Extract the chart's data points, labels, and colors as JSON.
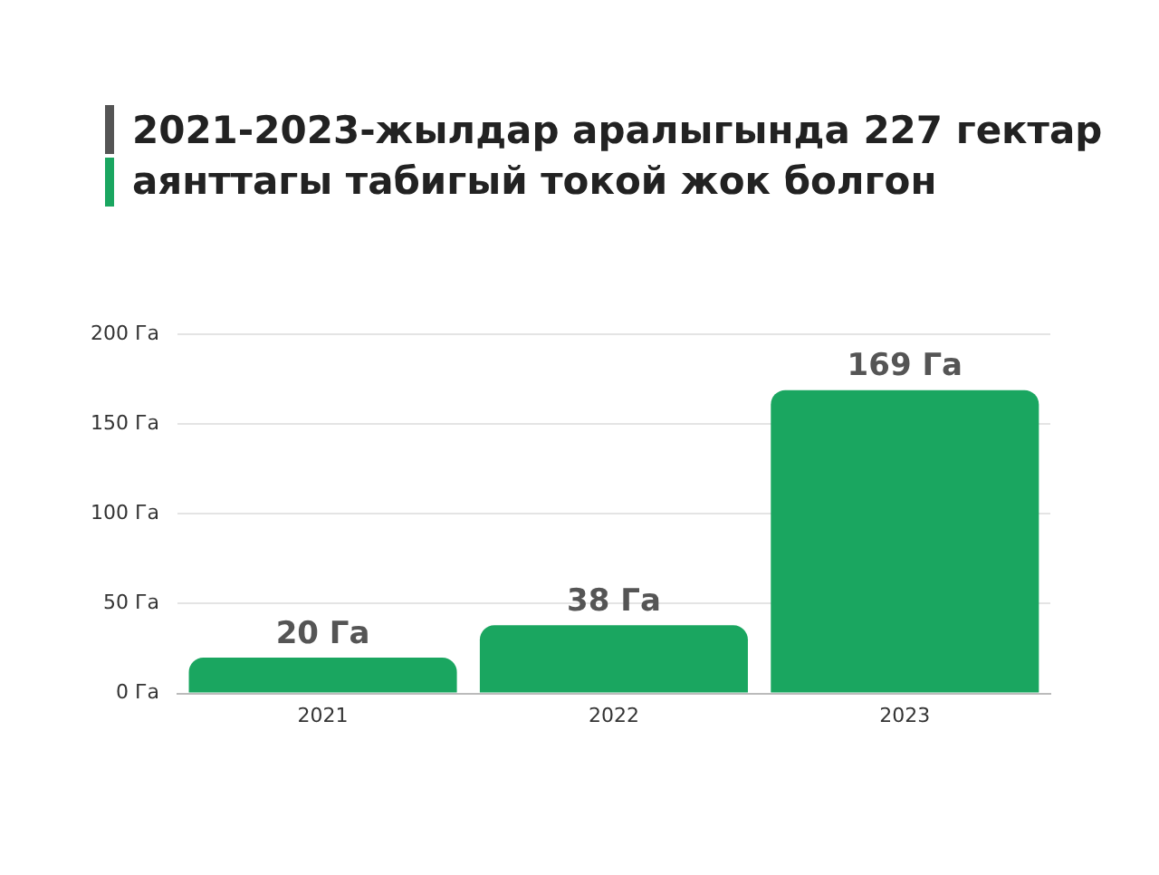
{
  "chart_data": {
    "type": "bar",
    "title": "2021-2023-жылдар аралыгында 227 гектар аянттагы табигый токой жок болгон",
    "categories": [
      "2021",
      "2022",
      "2023"
    ],
    "values": [
      20,
      38,
      169
    ],
    "value_labels": [
      "20 Га",
      "38 Га",
      "169 Га"
    ],
    "color": "#1aa660",
    "ylim": [
      0,
      200
    ],
    "yticks": [
      {
        "value": 0,
        "label": "0 Га"
      },
      {
        "value": 50,
        "label": "50 Га"
      },
      {
        "value": 100,
        "label": "100 Га"
      },
      {
        "value": 150,
        "label": "150 Га"
      },
      {
        "value": 200,
        "label": "200 Га"
      }
    ],
    "grid": "y"
  }
}
